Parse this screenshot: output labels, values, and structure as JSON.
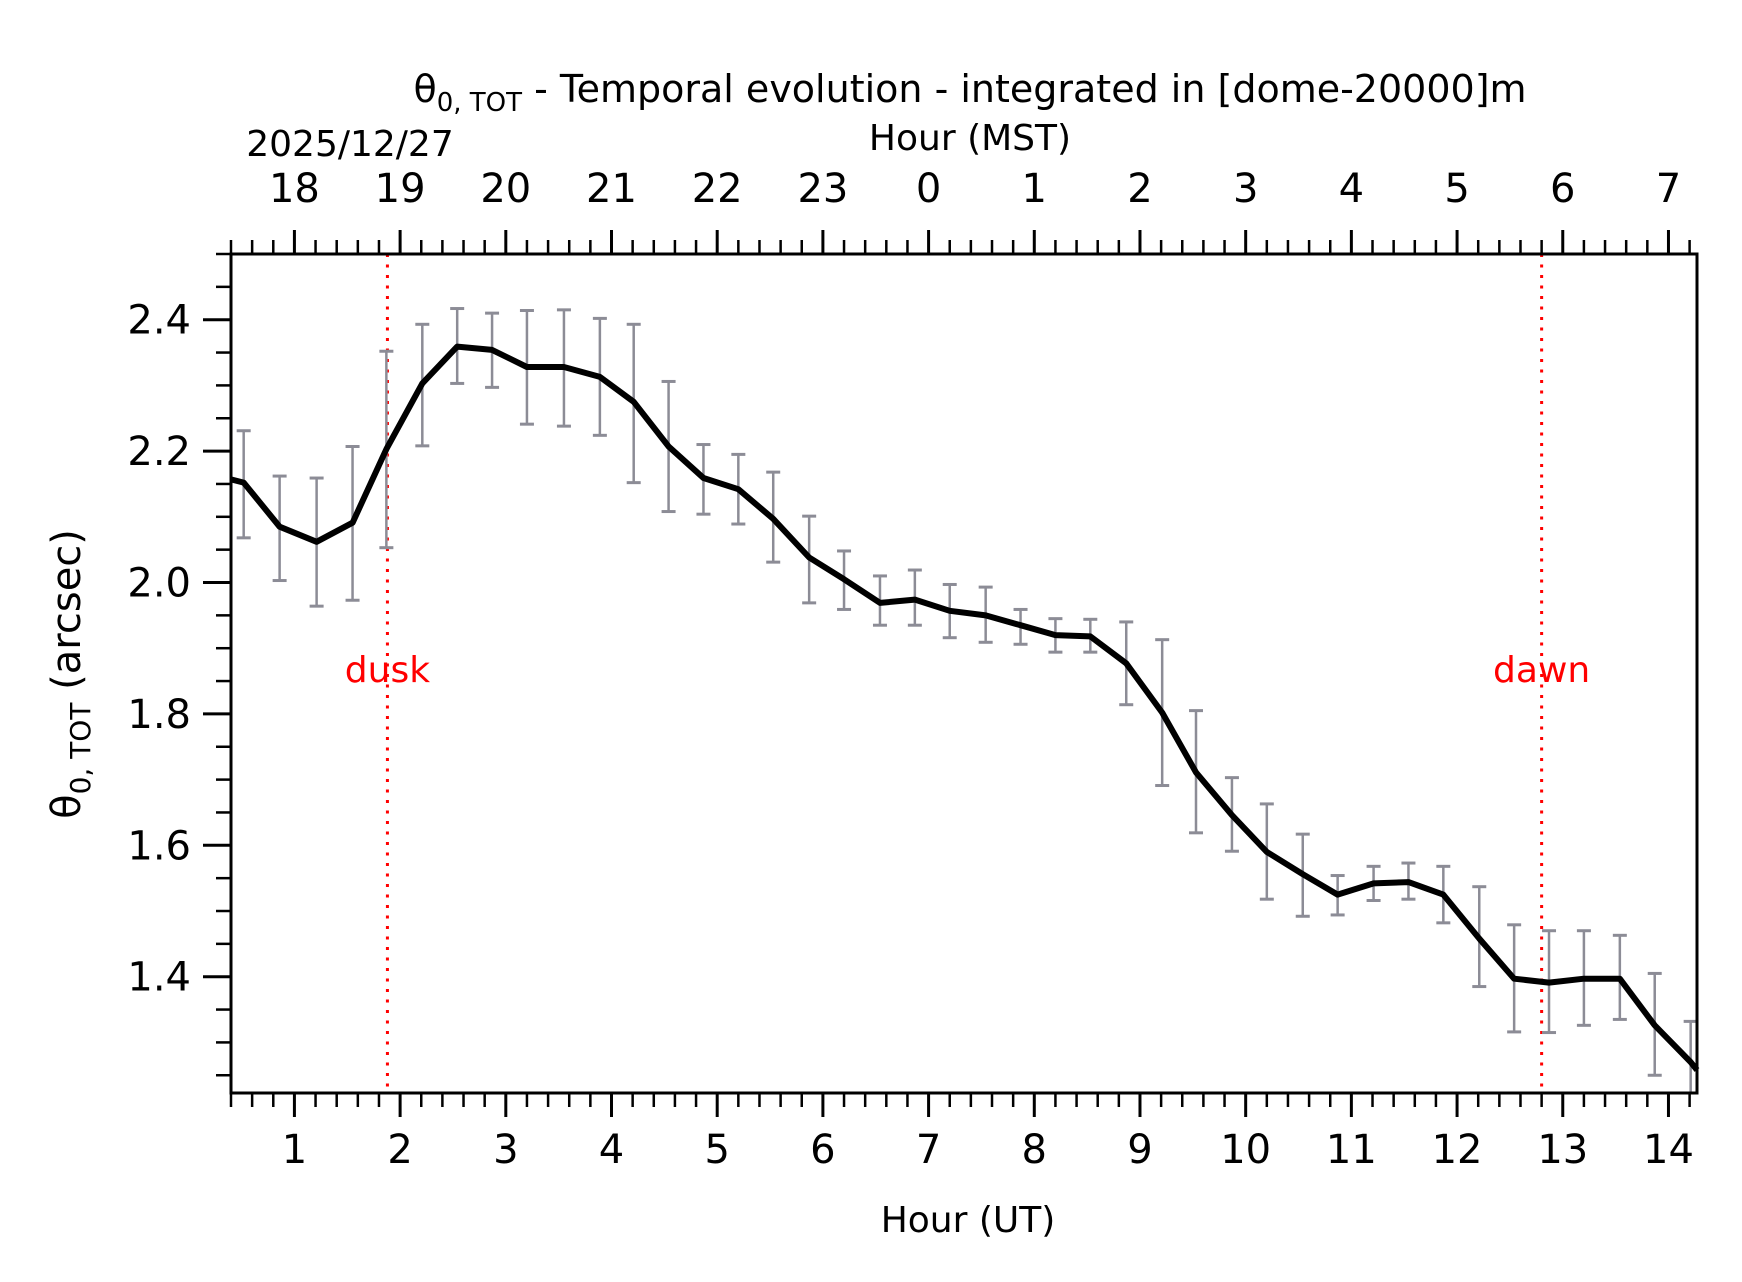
{
  "chart_data": {
    "type": "line",
    "title_symbol": "θ",
    "title_symbol_sub": "0, TOT",
    "title_rest": " - Temporal evolution - integrated in [dome-20000]m",
    "date_label": "2025/12/27",
    "xlabel": "Hour (UT)",
    "xlabel_top": "Hour (MST)",
    "ylabel_symbol": "θ",
    "ylabel_sub": "0, TOT",
    "ylabel_rest": " (arcsec)",
    "xlim": [
      0.4,
      14.27
    ],
    "ylim": [
      1.223,
      2.5
    ],
    "x_ticks": [
      1,
      2,
      3,
      4,
      5,
      6,
      7,
      8,
      9,
      10,
      11,
      12,
      13,
      14
    ],
    "x_tick_labels": [
      "1",
      "2",
      "3",
      "4",
      "5",
      "6",
      "7",
      "8",
      "9",
      "10",
      "11",
      "12",
      "13",
      "14"
    ],
    "x_top_tick_labels": [
      "18",
      "19",
      "20",
      "21",
      "22",
      "23",
      "0",
      "1",
      "2",
      "3",
      "4",
      "5",
      "6",
      "7"
    ],
    "y_ticks": [
      1.4,
      1.6,
      1.8,
      2.0,
      2.2,
      2.4
    ],
    "y_tick_labels": [
      "1.4",
      "1.6",
      "1.8",
      "2.0",
      "2.2",
      "2.4"
    ],
    "grid": false,
    "line_color": "#000000",
    "errorbar_color": "#8c8c96",
    "annotation_color": "#ff0000",
    "series": [
      {
        "name": "theta0_TOT",
        "x": [
          0.52,
          0.86,
          1.21,
          1.55,
          1.87,
          2.21,
          2.54,
          2.87,
          3.2,
          3.55,
          3.89,
          4.21,
          4.54,
          4.87,
          5.2,
          5.53,
          5.87,
          6.2,
          6.54,
          6.87,
          7.2,
          7.54,
          7.87,
          8.2,
          8.53,
          8.87,
          9.21,
          9.53,
          9.87,
          10.2,
          10.54,
          10.87,
          11.21,
          11.54,
          11.87,
          12.21,
          12.54,
          12.87,
          13.2,
          13.54,
          13.87,
          14.21
        ],
        "y": [
          2.152,
          2.085,
          2.062,
          2.091,
          2.203,
          2.303,
          2.359,
          2.354,
          2.328,
          2.328,
          2.313,
          2.275,
          2.207,
          2.159,
          2.142,
          2.097,
          2.038,
          2.005,
          1.969,
          1.974,
          1.957,
          1.95,
          1.935,
          1.92,
          1.918,
          1.877,
          1.802,
          1.711,
          1.646,
          1.59,
          1.556,
          1.525,
          1.542,
          1.544,
          1.525,
          1.458,
          1.397,
          1.391,
          1.397,
          1.397,
          1.326,
          1.27
        ],
        "err_high": [
          2.231,
          2.162,
          2.159,
          2.207,
          2.352,
          2.393,
          2.417,
          2.41,
          2.414,
          2.415,
          2.402,
          2.393,
          2.306,
          2.21,
          2.195,
          2.168,
          2.101,
          2.048,
          2.01,
          2.019,
          1.997,
          1.993,
          1.959,
          1.945,
          1.944,
          1.94,
          1.913,
          1.805,
          1.703,
          1.663,
          1.617,
          1.554,
          1.568,
          1.573,
          1.568,
          1.537,
          1.479,
          1.47,
          1.47,
          1.463,
          1.405,
          1.332
        ],
        "err_low": [
          2.068,
          2.003,
          1.964,
          1.973,
          2.053,
          2.208,
          2.303,
          2.297,
          2.241,
          2.238,
          2.224,
          2.152,
          2.108,
          2.104,
          2.089,
          2.031,
          1.969,
          1.959,
          1.935,
          1.935,
          1.916,
          1.909,
          1.906,
          1.894,
          1.894,
          1.814,
          1.691,
          1.619,
          1.591,
          1.518,
          1.492,
          1.494,
          1.516,
          1.518,
          1.482,
          1.385,
          1.316,
          1.315,
          1.326,
          1.335,
          1.25,
          1.218
        ]
      }
    ],
    "annotations": [
      {
        "label": "dusk",
        "x": 1.88
      },
      {
        "label": "dawn",
        "x": 12.8
      }
    ]
  }
}
